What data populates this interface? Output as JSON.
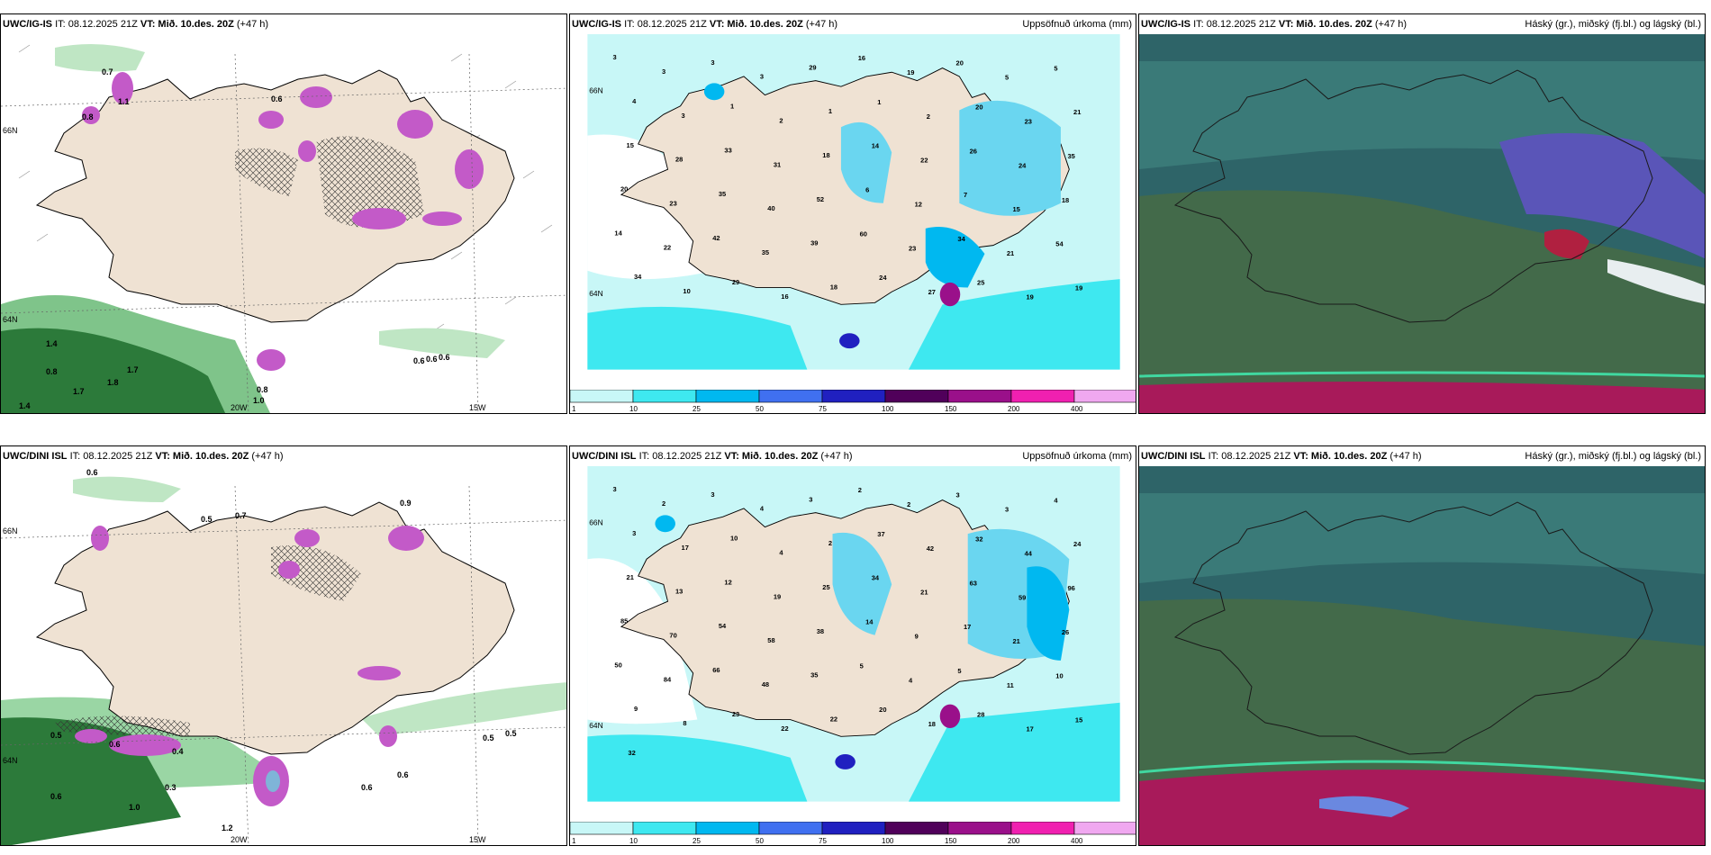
{
  "rows": [
    {
      "model": "UWC/IG-IS",
      "panels": [
        {
          "model": "UWC/IG-IS",
          "it": "IT: 08.12.2025 21Z",
          "vt_label": "VT:",
          "vt": "Mið. 10.des. 20Z",
          "lead": "(+47 h)",
          "title": "",
          "lat_labels": [
            "66N",
            "64N"
          ],
          "lon_labels": [
            "20W",
            "15W"
          ],
          "values": [
            "0.7",
            "0.8",
            "1.1",
            "1.4",
            "0.8",
            "1.7",
            "1.7",
            "1.4",
            "1.8",
            "0.6",
            "0.8",
            "1.0",
            "0.6",
            "0.6",
            "0.6"
          ]
        },
        {
          "model": "UWC/IG-IS",
          "it": "IT: 08.12.2025 21Z",
          "vt_label": "VT:",
          "vt": "Mið. 10.des. 20Z",
          "lead": "(+47 h)",
          "title": "Uppsöfnuð úrkoma (mm)",
          "lat_labels": [
            "66N",
            "64N"
          ],
          "values": [
            "3",
            "3",
            "3",
            "3",
            "29",
            "16",
            "19",
            "20",
            "5",
            "5",
            "4",
            "3",
            "1",
            "2",
            "1",
            "1",
            "2",
            "20",
            "23",
            "21",
            "15",
            "28",
            "33",
            "31",
            "18",
            "14",
            "22",
            "26",
            "24",
            "35",
            "20",
            "23",
            "35",
            "40",
            "52",
            "6",
            "12",
            "7",
            "15",
            "18",
            "14",
            "22",
            "42",
            "35",
            "39",
            "60",
            "23",
            "34",
            "21",
            "54",
            "34",
            "10",
            "29",
            "16",
            "18",
            "24",
            "27",
            "25",
            "19",
            "19"
          ]
        },
        {
          "model": "UWC/IG-IS",
          "it": "IT: 08.12.2025 21Z",
          "vt_label": "VT:",
          "vt": "Mið. 10.des. 20Z",
          "lead": "(+47 h)",
          "title": "Háský (gr.), miðský (fj.bl.) og lágský (bl.)"
        }
      ]
    },
    {
      "model": "UWC/DINI ISL",
      "panels": [
        {
          "model": "UWC/DINI ISL",
          "it": "IT: 08.12.2025 21Z",
          "vt_label": "VT:",
          "vt": "Mið. 10.des. 20Z",
          "lead": "(+47 h)",
          "title": "",
          "lat_labels": [
            "66N",
            "64N"
          ],
          "lon_labels": [
            "20W",
            "15W"
          ],
          "values": [
            "0.6",
            "0.5",
            "0.7",
            "0.9",
            "0.5",
            "0.6",
            "0.6",
            "0.5",
            "0.4",
            "0.3",
            "0.6",
            "0.5",
            "1.0",
            "0.6",
            "1.2"
          ]
        },
        {
          "model": "UWC/DINI ISL",
          "it": "IT: 08.12.2025 21Z",
          "vt_label": "VT:",
          "vt": "Mið. 10.des. 20Z",
          "lead": "(+47 h)",
          "title": "Uppsöfnuð úrkoma (mm)",
          "lat_labels": [
            "66N",
            "64N"
          ],
          "values": [
            "3",
            "2",
            "3",
            "4",
            "3",
            "2",
            "2",
            "3",
            "3",
            "4",
            "3",
            "17",
            "10",
            "4",
            "2",
            "37",
            "42",
            "32",
            "44",
            "24",
            "21",
            "13",
            "12",
            "19",
            "25",
            "34",
            "21",
            "63",
            "59",
            "96",
            "85",
            "70",
            "54",
            "58",
            "38",
            "14",
            "9",
            "17",
            "21",
            "26",
            "50",
            "84",
            "66",
            "48",
            "35",
            "5",
            "4",
            "5",
            "11",
            "10",
            "9",
            "8",
            "23",
            "22",
            "22",
            "20",
            "18",
            "28",
            "17",
            "15",
            "32"
          ]
        },
        {
          "model": "UWC/DINI ISL",
          "it": "IT: 08.12.2025 21Z",
          "vt_label": "VT:",
          "vt": "Mið. 10.des. 20Z",
          "lead": "(+47 h)",
          "title": "Háský (gr.), miðský (fj.bl.) og lágský (bl.)"
        }
      ]
    }
  ],
  "colorbar": {
    "labels": [
      "1",
      "10",
      "25",
      "50",
      "75",
      "100",
      "150",
      "200",
      "400"
    ],
    "colors": [
      "#c8f7f7",
      "#3ee8f0",
      "#00b8f0",
      "#4070f0",
      "#2020c0",
      "#50005a",
      "#9a108a",
      "#f020b0",
      "#f0a8f0"
    ]
  }
}
